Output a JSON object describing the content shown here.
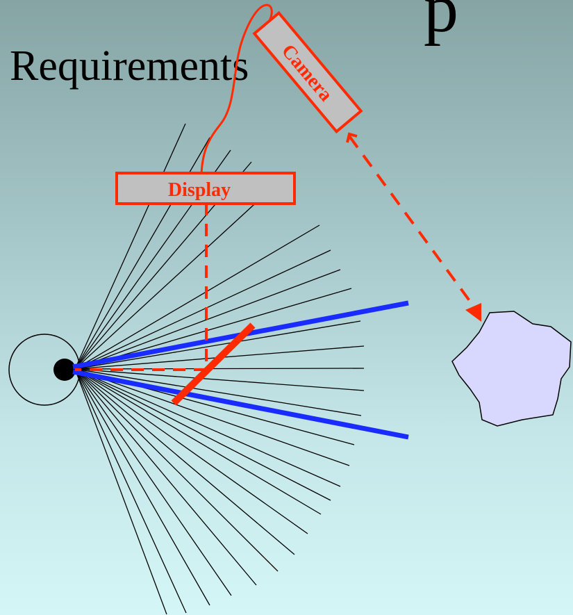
{
  "slide": {
    "heading": "Requirements",
    "heading_fragment": "p"
  },
  "diagram": {
    "display_label": "Display",
    "camera_label": "Camera",
    "colors": {
      "rays": "#000000",
      "view_frustum": "#1a2bff",
      "device": "#ff2a00",
      "device_fill": "#c0c0c0",
      "object_fill": "#d8d8ff",
      "eye": "#000000"
    },
    "icons": [
      "eye-icon",
      "camera-icon",
      "display-icon",
      "beam-splitter-icon",
      "object-blob-icon"
    ]
  }
}
